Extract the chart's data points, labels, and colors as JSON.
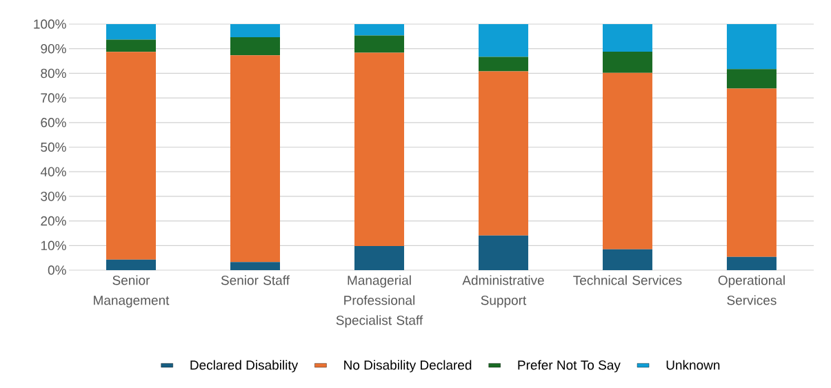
{
  "chart_data": {
    "type": "bar",
    "stacked": true,
    "categories": [
      "Senior Management",
      "Senior Staff",
      "Managerial Professional Specialist Staff",
      "Administrative Support",
      "Technical Services",
      "Operational Services"
    ],
    "series": [
      {
        "name": "Declared Disability",
        "color": "#175e82",
        "values": [
          4.3,
          3.3,
          9.8,
          14.1,
          8.5,
          5.4
        ]
      },
      {
        "name": "No Disability Declared",
        "color": "#e97132",
        "values": [
          84.4,
          84.0,
          78.6,
          66.7,
          71.7,
          68.4
        ]
      },
      {
        "name": "Prefer Not To Say",
        "color": "#196b24",
        "values": [
          5.0,
          7.4,
          7.0,
          5.9,
          8.6,
          7.9
        ]
      },
      {
        "name": "Unknown",
        "color": "#0f9ed5",
        "values": [
          6.3,
          5.3,
          4.6,
          13.3,
          11.2,
          18.3
        ]
      }
    ],
    "ylim": [
      0,
      100
    ],
    "yticks": [
      {
        "value": 0,
        "label": "0%"
      },
      {
        "value": 10,
        "label": "10%"
      },
      {
        "value": 20,
        "label": "20%"
      },
      {
        "value": 30,
        "label": "30%"
      },
      {
        "value": 40,
        "label": "40%"
      },
      {
        "value": 50,
        "label": "50%"
      },
      {
        "value": 60,
        "label": "60%"
      },
      {
        "value": 70,
        "label": "70%"
      },
      {
        "value": 80,
        "label": "80%"
      },
      {
        "value": 90,
        "label": "90%"
      },
      {
        "value": 100,
        "label": "100%"
      }
    ],
    "grid": "y",
    "legend": "bottom"
  }
}
